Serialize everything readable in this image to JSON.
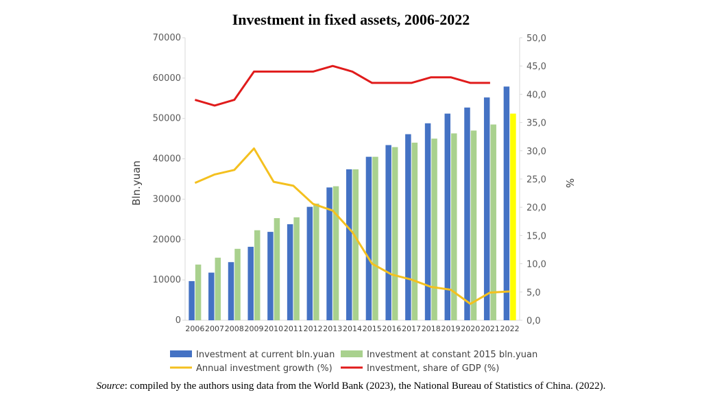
{
  "colors": {
    "current": "#4472C4",
    "constant": "#A9D18E",
    "constant_highlight": "#FFFF00",
    "growth": "#F4C01F",
    "share": "#E01B1B",
    "axis": "#D9D9D9"
  },
  "source": {
    "label": "Source",
    "text": ": compiled by the authors using data from the World Bank (2023), the National Bureau of Statistics of China. (2022)."
  },
  "chart_data": {
    "type": "bar",
    "title": "Investment in fixed assets, 2006-2022",
    "ylabel": "Bln.yuan",
    "y2label": "%",
    "ylim": [
      0,
      70000
    ],
    "y2lim": [
      0,
      50
    ],
    "yticks": [
      "0",
      "10000",
      "20000",
      "30000",
      "40000",
      "50000",
      "60000",
      "70000"
    ],
    "y2ticks": [
      "0,0",
      "5,0",
      "10,0",
      "15,0",
      "20,0",
      "25,0",
      "30,0",
      "35,0",
      "40,0",
      "45,0",
      "50,0"
    ],
    "categories": [
      "2006",
      "2007",
      "2008",
      "2009",
      "2010",
      "2011",
      "2012",
      "2013",
      "2014",
      "2015",
      "2016",
      "2017",
      "2018",
      "2019",
      "2020",
      "2021",
      "2022"
    ],
    "series": [
      {
        "name": "Investment at current bln.yuan",
        "kind": "bar",
        "axis": "left",
        "values": [
          9700,
          11800,
          14400,
          18200,
          21900,
          23800,
          28100,
          32900,
          37400,
          40500,
          43400,
          46100,
          48800,
          51200,
          52700,
          55200,
          57900
        ]
      },
      {
        "name": "Investment at constant 2015 bln.yuan",
        "kind": "bar",
        "axis": "left",
        "values": [
          13800,
          15500,
          17700,
          22300,
          25300,
          25500,
          28900,
          33200,
          37400,
          40500,
          42900,
          44000,
          45000,
          46300,
          47000,
          48500,
          51200
        ]
      },
      {
        "name": "Annual investment growth (%)",
        "kind": "line",
        "axis": "right",
        "values": [
          24.3,
          25.8,
          26.6,
          30.4,
          24.5,
          23.8,
          20.6,
          19.4,
          15.6,
          10.0,
          8.1,
          7.2,
          5.9,
          5.4,
          2.9,
          4.9,
          5.1
        ]
      },
      {
        "name": "Investment, share of GDP (%)",
        "kind": "line",
        "axis": "right",
        "values": [
          39,
          38,
          39,
          44,
          44,
          44,
          44,
          45,
          44,
          42,
          42,
          42,
          43,
          43,
          42,
          42,
          null
        ]
      }
    ],
    "legend": "bottom"
  }
}
